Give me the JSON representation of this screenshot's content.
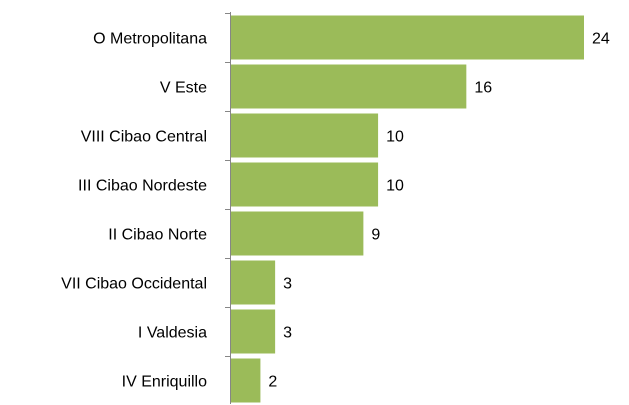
{
  "chart_data": {
    "type": "bar",
    "orientation": "horizontal",
    "categories": [
      "O Metropolitana",
      "V Este",
      "VIII Cibao Central",
      "III Cibao Nordeste",
      "II Cibao Norte",
      "VII Cibao Occidental",
      "I Valdesia",
      "IV Enriquillo"
    ],
    "values": [
      24,
      16,
      10,
      10,
      9,
      3,
      3,
      2
    ],
    "color": "#9bbb59",
    "xlim": [
      0,
      24
    ]
  }
}
